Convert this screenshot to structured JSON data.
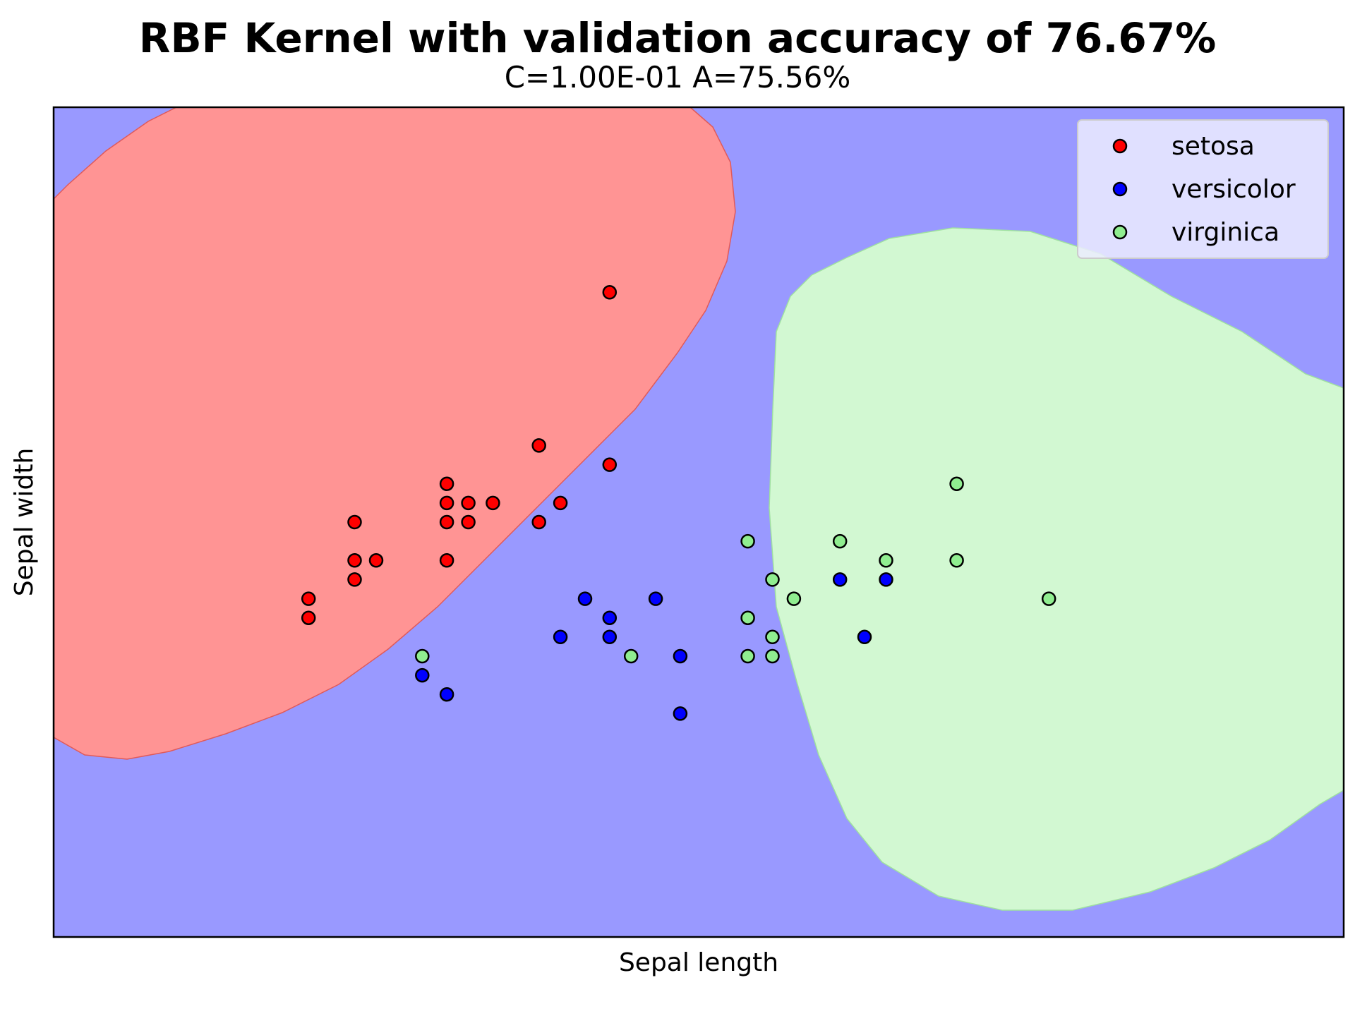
{
  "chart_data": {
    "type": "scatter",
    "title": "RBF Kernel with validation accuracy of 76.67%",
    "subtitle": "C=1.00E-01 A=75.56%",
    "xlabel": "Sepal length",
    "ylabel": "Sepal width",
    "xlim": [
      4.0,
      8.2
    ],
    "ylim": [
      1.8,
      4.4
    ],
    "ticks_visible": false,
    "grid": false,
    "legend": {
      "placement": "top-right",
      "entries": [
        "setosa",
        "versicolor",
        "virginica"
      ]
    },
    "background": {
      "description": "decision regions",
      "colors": {
        "setosa": "#ff9494",
        "versicolor": "#9999ff",
        "virginica": "#d2f8d2"
      }
    },
    "series": [
      {
        "name": "setosa",
        "color": "#ff0000",
        "points": [
          [
            4.83,
            2.8
          ],
          [
            4.83,
            2.86
          ],
          [
            4.98,
            2.92
          ],
          [
            4.98,
            2.98
          ],
          [
            5.05,
            2.98
          ],
          [
            4.98,
            3.1
          ],
          [
            5.28,
            2.98
          ],
          [
            5.28,
            3.1
          ],
          [
            5.28,
            3.16
          ],
          [
            5.28,
            3.22
          ],
          [
            5.35,
            3.1
          ],
          [
            5.35,
            3.16
          ],
          [
            5.43,
            3.16
          ],
          [
            5.58,
            3.1
          ],
          [
            5.58,
            3.34
          ],
          [
            5.65,
            3.16
          ],
          [
            5.81,
            3.82
          ],
          [
            5.81,
            3.28
          ]
        ]
      },
      {
        "name": "versicolor",
        "color": "#0000ff",
        "points": [
          [
            5.2,
            2.62
          ],
          [
            5.28,
            2.56
          ],
          [
            5.65,
            2.74
          ],
          [
            5.73,
            2.86
          ],
          [
            5.81,
            2.8
          ],
          [
            5.81,
            2.74
          ],
          [
            5.96,
            2.86
          ],
          [
            6.04,
            2.68
          ],
          [
            6.04,
            2.5
          ],
          [
            6.56,
            2.92
          ],
          [
            6.64,
            2.74
          ],
          [
            6.71,
            2.92
          ]
        ]
      },
      {
        "name": "virginica",
        "color": "#90ee90",
        "points": [
          [
            5.2,
            2.68
          ],
          [
            5.88,
            2.68
          ],
          [
            6.26,
            3.04
          ],
          [
            6.26,
            2.8
          ],
          [
            6.26,
            2.68
          ],
          [
            6.34,
            2.92
          ],
          [
            6.34,
            2.74
          ],
          [
            6.34,
            2.68
          ],
          [
            6.41,
            2.86
          ],
          [
            6.56,
            3.04
          ],
          [
            6.71,
            2.98
          ],
          [
            6.94,
            3.22
          ],
          [
            6.94,
            2.98
          ],
          [
            7.24,
            2.86
          ]
        ]
      }
    ]
  }
}
